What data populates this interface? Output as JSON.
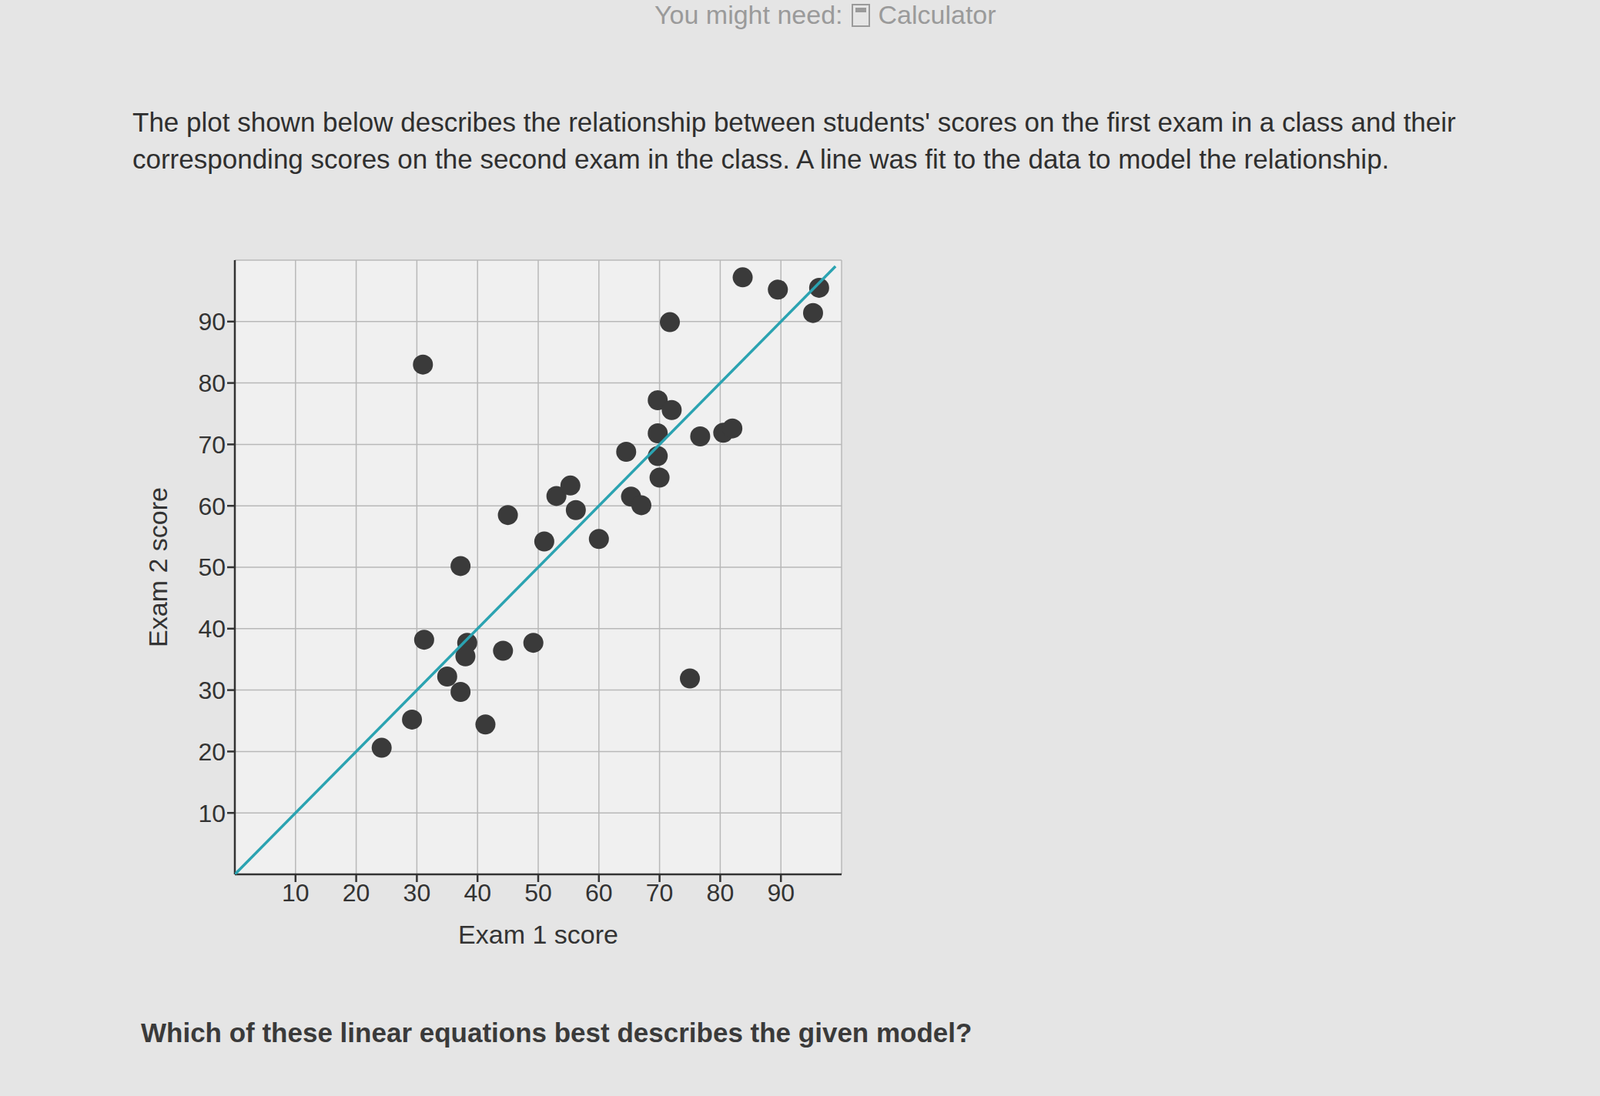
{
  "page": {
    "tool_hint": "You might need:",
    "tool": "Calculator",
    "prompt": "The plot shown below describes the relationship between students' scores on the first exam in a class and their corresponding scores on the second exam in the class. A line was fit to the data to model the relationship.",
    "question": "Which of these linear equations best describes the given model?"
  },
  "chart_data": {
    "type": "scatter",
    "x_label": "Exam 1 score",
    "y_label": "Exam 2 score",
    "xlim": [
      0,
      100
    ],
    "ylim": [
      0,
      100
    ],
    "xticks": [
      10,
      20,
      30,
      40,
      50,
      60,
      70,
      80,
      90
    ],
    "yticks": [
      10,
      20,
      30,
      40,
      50,
      60,
      70,
      80,
      90
    ],
    "grid": true,
    "series": [
      {
        "type": "scatter",
        "color": "#3a3a3a",
        "marker": "circle",
        "x": [
          24.2,
          29.2,
          31,
          31.2,
          35,
          37.2,
          37.2,
          38.3,
          38,
          41.3,
          44.2,
          45,
          49.2,
          51,
          53,
          55.3,
          56.2,
          60,
          64.5,
          65.3,
          67,
          69.7,
          69.7,
          70,
          69.7,
          72,
          71.7,
          75,
          76.7,
          80.5,
          82,
          83.7,
          89.5,
          95.3,
          96.3
        ],
        "values": [
          20.6,
          25.2,
          83,
          38.2,
          32.2,
          29.7,
          50.2,
          37.7,
          35.5,
          24.4,
          36.4,
          58.5,
          37.7,
          54.2,
          61.6,
          63.3,
          59.3,
          54.6,
          68.8,
          61.5,
          60.1,
          77.2,
          68.1,
          64.6,
          71.8,
          75.6,
          89.9,
          31.9,
          71.3,
          71.9,
          72.6,
          97.2,
          95.2,
          91.4,
          95.5
        ]
      },
      {
        "type": "line",
        "color": "#2ba3b1",
        "line_style": "solid",
        "x": [
          0,
          99
        ],
        "values": [
          0,
          99
        ]
      }
    ]
  }
}
